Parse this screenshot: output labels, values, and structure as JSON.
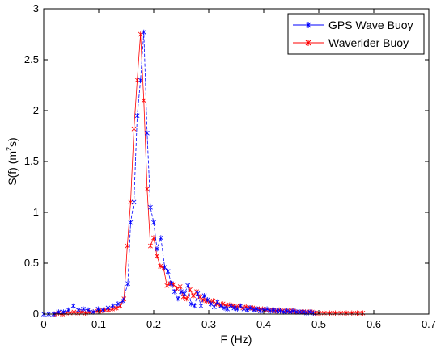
{
  "chart_data": {
    "type": "line",
    "xlabel": "F  (Hz)",
    "ylabel_main": "S(f)  (m",
    "ylabel_sup": "2",
    "ylabel_tail": "s)",
    "xlim": [
      0,
      0.7
    ],
    "ylim": [
      0,
      3
    ],
    "xticks": [
      0,
      0.1,
      0.2,
      0.3,
      0.4,
      0.5,
      0.6,
      0.7
    ],
    "yticks": [
      0,
      0.5,
      1,
      1.5,
      2,
      2.5,
      3
    ],
    "xtick_labels": [
      "0",
      "0.1",
      "0.2",
      "0.3",
      "0.4",
      "0.5",
      "0.6",
      "0.7"
    ],
    "ytick_labels": [
      "0",
      "0.5",
      "1",
      "1.5",
      "2",
      "2.5",
      "3"
    ],
    "grid": false,
    "legend_position": "top-right",
    "series": [
      {
        "name": "GPS Wave Buoy",
        "color": "#0000ff",
        "marker": "x",
        "x": [
          0.0,
          0.009,
          0.018,
          0.027,
          0.036,
          0.045,
          0.054,
          0.063,
          0.072,
          0.081,
          0.09,
          0.099,
          0.108,
          0.117,
          0.126,
          0.135,
          0.144,
          0.153,
          0.158,
          0.164,
          0.17,
          0.176,
          0.182,
          0.188,
          0.194,
          0.2,
          0.206,
          0.213,
          0.22,
          0.226,
          0.232,
          0.238,
          0.244,
          0.25,
          0.256,
          0.262,
          0.268,
          0.274,
          0.28,
          0.286,
          0.292,
          0.298,
          0.304,
          0.31,
          0.316,
          0.322,
          0.328,
          0.334,
          0.34,
          0.346,
          0.352,
          0.358,
          0.364,
          0.37,
          0.376,
          0.382,
          0.388,
          0.394,
          0.4,
          0.406,
          0.412,
          0.418,
          0.424,
          0.43,
          0.436,
          0.442,
          0.448,
          0.454,
          0.46,
          0.466,
          0.472,
          0.478,
          0.484,
          0.49
        ],
        "y": [
          0.0,
          0.0,
          0.0,
          0.02,
          0.02,
          0.04,
          0.08,
          0.04,
          0.05,
          0.04,
          0.02,
          0.05,
          0.04,
          0.06,
          0.08,
          0.1,
          0.13,
          0.3,
          0.9,
          1.1,
          1.95,
          2.3,
          2.77,
          1.78,
          1.05,
          0.9,
          0.64,
          0.75,
          0.46,
          0.42,
          0.3,
          0.22,
          0.15,
          0.22,
          0.2,
          0.28,
          0.1,
          0.08,
          0.2,
          0.08,
          0.18,
          0.14,
          0.1,
          0.07,
          0.12,
          0.08,
          0.06,
          0.05,
          0.08,
          0.06,
          0.05,
          0.08,
          0.05,
          0.04,
          0.06,
          0.04,
          0.05,
          0.03,
          0.04,
          0.05,
          0.03,
          0.04,
          0.03,
          0.03,
          0.02,
          0.03,
          0.02,
          0.03,
          0.02,
          0.02,
          0.02,
          0.01,
          0.02,
          0.01
        ]
      },
      {
        "name": "Waverider Buoy",
        "color": "#ff0000",
        "marker": "x",
        "x": [
          0.02,
          0.027,
          0.034,
          0.041,
          0.048,
          0.055,
          0.062,
          0.069,
          0.076,
          0.083,
          0.09,
          0.097,
          0.104,
          0.111,
          0.118,
          0.125,
          0.132,
          0.139,
          0.146,
          0.152,
          0.158,
          0.164,
          0.17,
          0.176,
          0.182,
          0.188,
          0.194,
          0.2,
          0.206,
          0.212,
          0.218,
          0.224,
          0.23,
          0.236,
          0.242,
          0.248,
          0.254,
          0.26,
          0.266,
          0.272,
          0.278,
          0.284,
          0.29,
          0.296,
          0.302,
          0.308,
          0.314,
          0.32,
          0.326,
          0.332,
          0.338,
          0.344,
          0.35,
          0.356,
          0.362,
          0.368,
          0.374,
          0.38,
          0.386,
          0.392,
          0.398,
          0.404,
          0.41,
          0.416,
          0.422,
          0.428,
          0.434,
          0.44,
          0.446,
          0.452,
          0.458,
          0.464,
          0.47,
          0.476,
          0.482,
          0.488,
          0.494,
          0.5,
          0.51,
          0.52,
          0.53,
          0.54,
          0.55,
          0.56,
          0.57,
          0.58
        ],
        "y": [
          0.0,
          0.01,
          0.0,
          0.01,
          0.01,
          0.02,
          0.01,
          0.02,
          0.01,
          0.02,
          0.02,
          0.03,
          0.03,
          0.04,
          0.04,
          0.05,
          0.06,
          0.08,
          0.15,
          0.67,
          1.1,
          1.82,
          2.3,
          2.75,
          2.1,
          1.23,
          0.67,
          0.75,
          0.57,
          0.47,
          0.45,
          0.28,
          0.3,
          0.29,
          0.25,
          0.27,
          0.17,
          0.15,
          0.24,
          0.18,
          0.22,
          0.17,
          0.14,
          0.13,
          0.12,
          0.13,
          0.1,
          0.09,
          0.1,
          0.08,
          0.09,
          0.08,
          0.07,
          0.08,
          0.06,
          0.07,
          0.06,
          0.06,
          0.05,
          0.05,
          0.05,
          0.04,
          0.04,
          0.04,
          0.03,
          0.04,
          0.03,
          0.03,
          0.03,
          0.03,
          0.02,
          0.02,
          0.02,
          0.02,
          0.02,
          0.02,
          0.01,
          0.01,
          0.01,
          0.01,
          0.01,
          0.01,
          0.01,
          0.01,
          0.01,
          0.01
        ]
      }
    ]
  }
}
